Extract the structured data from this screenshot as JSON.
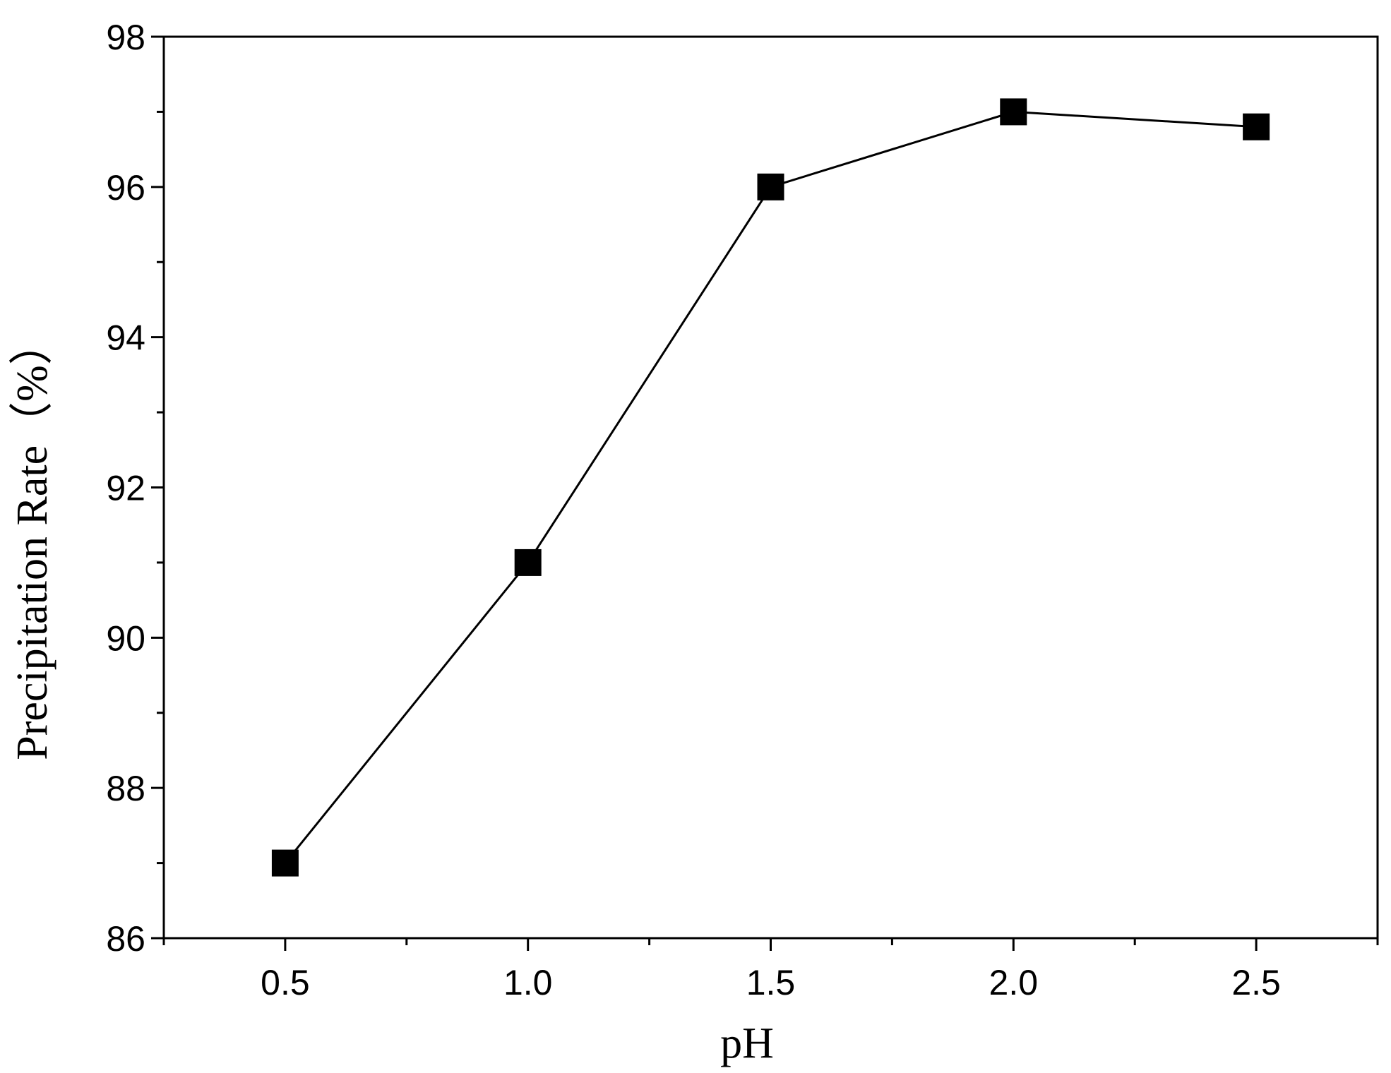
{
  "chart_data": {
    "type": "line",
    "title": "",
    "xlabel": "pH",
    "ylabel": "Precipitation Rate（%）",
    "xlim": [
      0.25,
      2.75
    ],
    "ylim": [
      86,
      98
    ],
    "x_ticks": [
      "0.5",
      "1.0",
      "1.5",
      "2.0",
      "2.5"
    ],
    "x_tick_values": [
      0.5,
      1.0,
      1.5,
      2.0,
      2.5
    ],
    "x_minor_ticks": [
      0.25,
      0.75,
      1.25,
      1.75,
      2.25,
      2.75
    ],
    "y_ticks": [
      "86",
      "88",
      "90",
      "92",
      "94",
      "96",
      "98"
    ],
    "y_tick_values": [
      86,
      88,
      90,
      92,
      94,
      96,
      98
    ],
    "y_minor_ticks": [
      87,
      89,
      91,
      93,
      95,
      97
    ],
    "grid": false,
    "legend": "none",
    "series": [
      {
        "marker": "square",
        "color": "#000000",
        "x": [
          0.5,
          1.0,
          1.5,
          2.0,
          2.5
        ],
        "y": [
          87.0,
          91.0,
          96.0,
          97.0,
          96.8
        ]
      }
    ]
  }
}
